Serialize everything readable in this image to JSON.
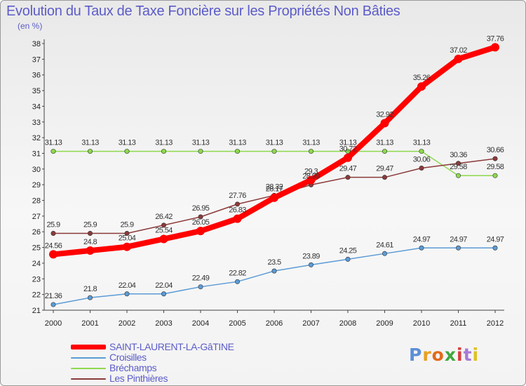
{
  "chart_data": {
    "type": "line",
    "title": "Evolution du Taux de Taxe Foncière sur les Propriétés Non Bâties",
    "ylabel": "(en %)",
    "xlabel": "",
    "ylim": [
      21,
      38
    ],
    "y_ticks": [
      "21",
      "22",
      "23",
      "24",
      "25",
      "26",
      "27",
      "28",
      "29",
      "30",
      "31",
      "32",
      "33",
      "34",
      "35",
      "36",
      "37",
      "38"
    ],
    "categories": [
      "2000",
      "2001",
      "2002",
      "2003",
      "2004",
      "2005",
      "2006",
      "2007",
      "2008",
      "2009",
      "2010",
      "2011",
      "2012"
    ],
    "series": [
      {
        "name": "SAINT-LAURENT-LA-GâTINE",
        "color": "#ff0000",
        "width": 8,
        "values": [
          24.56,
          24.8,
          25.04,
          25.54,
          26.05,
          26.83,
          28.17,
          29.3,
          30.72,
          32.92,
          35.26,
          37.02,
          37.76
        ],
        "labels": [
          "24.56",
          "24.8",
          "25.04",
          "25.54",
          "26.05",
          "26.83",
          "28.17",
          "29.3",
          "30.72",
          "32.92",
          "35.26",
          "37.02",
          "37.76"
        ]
      },
      {
        "name": "Croisilles",
        "color": "#5b9bd5",
        "width": 1.5,
        "values": [
          21.36,
          21.8,
          22.04,
          22.04,
          22.49,
          22.82,
          23.5,
          23.89,
          24.25,
          24.61,
          24.97,
          24.97,
          24.97
        ],
        "labels": [
          "21.36",
          "21.8",
          "22.04",
          "22.04",
          "22.49",
          "22.82",
          "23.5",
          "23.89",
          "24.25",
          "24.61",
          "24.97",
          "24.97",
          "24.97"
        ]
      },
      {
        "name": "Bréchamps",
        "color": "#8ed94e",
        "width": 1.5,
        "values": [
          31.13,
          31.13,
          31.13,
          31.13,
          31.13,
          31.13,
          31.13,
          31.13,
          31.13,
          31.13,
          31.13,
          29.58,
          29.58
        ],
        "labels": [
          "31.13",
          "31.13",
          "31.13",
          "31.13",
          "31.13",
          "31.13",
          "31.13",
          "31.13",
          "31.13",
          "31.13",
          "31.13",
          "29.58",
          "29.58"
        ]
      },
      {
        "name": "Les Pinthières",
        "color": "#8b3a3a",
        "width": 1.5,
        "values": [
          25.9,
          25.9,
          25.9,
          26.42,
          26.95,
          27.76,
          28.32,
          28.99,
          29.47,
          29.47,
          30.06,
          30.36,
          30.66
        ],
        "labels": [
          "25.9",
          "25.9",
          "25.9",
          "26.42",
          "26.95",
          "27.76",
          "28.32",
          "28.99",
          "29.47",
          "29.47",
          "30.06",
          "30.36",
          "30.66"
        ]
      }
    ],
    "legend_position": "bottom-left",
    "grid": false
  },
  "branding": {
    "logo_letters": [
      "P",
      "r",
      "o",
      "x",
      "i",
      "t",
      "i"
    ],
    "logo_colors": [
      "#5b8fd8",
      "#e8a020",
      "#e26a1c",
      "#3ea83e",
      "#d93b3b",
      "#a77bd6",
      "#e0c020"
    ]
  }
}
